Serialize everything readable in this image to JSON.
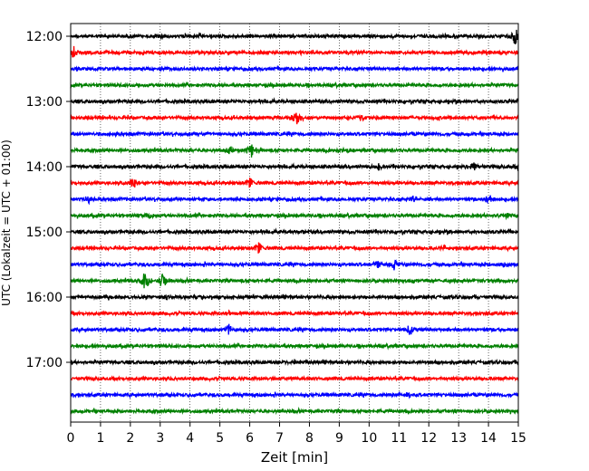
{
  "chart_data": {
    "type": "line",
    "title": "",
    "xlabel": "Zeit  [min]",
    "ylabel": "UTC (Lokalzeit = UTC + 01:00)",
    "xlim": [
      0,
      15
    ],
    "x_ticks": [
      0,
      1,
      2,
      3,
      4,
      5,
      6,
      7,
      8,
      9,
      10,
      11,
      12,
      13,
      14,
      15
    ],
    "y_tick_labels": [
      "12:00",
      "13:00",
      "14:00",
      "15:00",
      "16:00",
      "17:00"
    ],
    "grid": "vertical-dotted",
    "trace_interval_minutes": 15,
    "trace_start": "12:00",
    "color_cycle": [
      "#000000",
      "#ff0000",
      "#0000ff",
      "#008000"
    ],
    "traces": [
      {
        "start": "12:00",
        "color": "#000000",
        "events": [
          {
            "t": 3.0,
            "amp": 0.3
          },
          {
            "t": 14.9,
            "amp": 1.4
          }
        ]
      },
      {
        "start": "12:15",
        "color": "#ff0000",
        "events": [
          {
            "t": 0.1,
            "amp": 0.9
          }
        ]
      },
      {
        "start": "12:30",
        "color": "#0000ff",
        "events": []
      },
      {
        "start": "12:45",
        "color": "#008000",
        "events": []
      },
      {
        "start": "13:00",
        "color": "#000000",
        "events": []
      },
      {
        "start": "13:15",
        "color": "#ff0000",
        "events": [
          {
            "t": 7.6,
            "amp": 1.2
          },
          {
            "t": 9.7,
            "amp": 0.4
          }
        ]
      },
      {
        "start": "13:30",
        "color": "#0000ff",
        "events": [
          {
            "t": 4.5,
            "amp": 0.3
          }
        ]
      },
      {
        "start": "13:45",
        "color": "#008000",
        "events": [
          {
            "t": 5.3,
            "amp": 0.6
          },
          {
            "t": 6.05,
            "amp": 1.2
          },
          {
            "t": 9.3,
            "amp": 0.4
          }
        ]
      },
      {
        "start": "14:00",
        "color": "#000000",
        "events": [
          {
            "t": 10.3,
            "amp": 0.5
          },
          {
            "t": 13.5,
            "amp": 0.9
          },
          {
            "t": 15.0,
            "amp": 0.9
          }
        ]
      },
      {
        "start": "14:15",
        "color": "#ff0000",
        "events": [
          {
            "t": 2.1,
            "amp": 0.8
          },
          {
            "t": 6.0,
            "amp": 0.7
          }
        ]
      },
      {
        "start": "14:30",
        "color": "#0000ff",
        "events": [
          {
            "t": 0.6,
            "amp": 0.7
          },
          {
            "t": 11.5,
            "amp": 0.6
          },
          {
            "t": 14.0,
            "amp": 0.9
          }
        ]
      },
      {
        "start": "14:45",
        "color": "#008000",
        "events": [
          {
            "t": 2.6,
            "amp": 0.5
          },
          {
            "t": 14.6,
            "amp": 0.6
          }
        ]
      },
      {
        "start": "15:00",
        "color": "#000000",
        "events": [
          {
            "t": 7.7,
            "amp": 0.3
          }
        ]
      },
      {
        "start": "15:15",
        "color": "#ff0000",
        "events": [
          {
            "t": 6.3,
            "amp": 0.8
          },
          {
            "t": 12.5,
            "amp": 0.4
          }
        ]
      },
      {
        "start": "15:30",
        "color": "#0000ff",
        "events": [
          {
            "t": 10.3,
            "amp": 0.7
          },
          {
            "t": 10.85,
            "amp": 0.8
          },
          {
            "t": 14.5,
            "amp": 0.5
          }
        ]
      },
      {
        "start": "15:45",
        "color": "#008000",
        "events": [
          {
            "t": 2.5,
            "amp": 1.6
          },
          {
            "t": 3.1,
            "amp": 1.4
          }
        ]
      },
      {
        "start": "16:00",
        "color": "#000000",
        "events": []
      },
      {
        "start": "16:15",
        "color": "#ff0000",
        "events": [
          {
            "t": 5.3,
            "amp": 0.3
          }
        ]
      },
      {
        "start": "16:30",
        "color": "#0000ff",
        "events": [
          {
            "t": 5.3,
            "amp": 0.9
          },
          {
            "t": 11.4,
            "amp": 1.0
          }
        ]
      },
      {
        "start": "16:45",
        "color": "#008000",
        "events": []
      },
      {
        "start": "17:00",
        "color": "#000000",
        "events": [
          {
            "t": 7.5,
            "amp": 0.3
          }
        ]
      },
      {
        "start": "17:15",
        "color": "#ff0000",
        "events": []
      },
      {
        "start": "17:30",
        "color": "#0000ff",
        "events": [
          {
            "t": 11.3,
            "amp": 0.3
          }
        ]
      },
      {
        "start": "17:45",
        "color": "#008000",
        "events": []
      }
    ]
  }
}
